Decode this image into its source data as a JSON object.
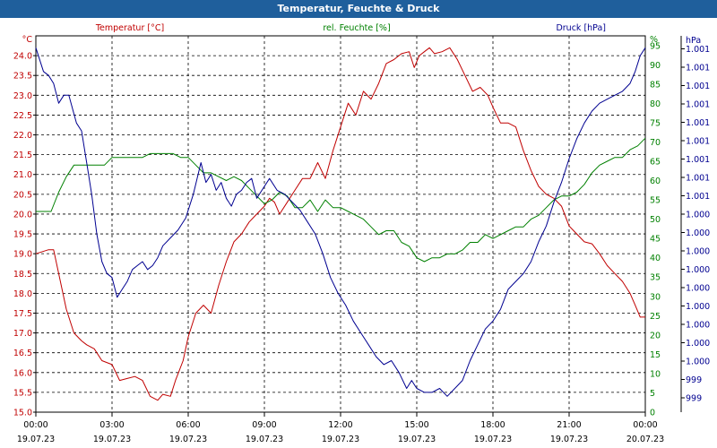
{
  "window": {
    "title": "Temperatur, Feuchte & Druck"
  },
  "chart_data": {
    "type": "line",
    "title": "Temperatur, Feuchte & Druck",
    "grid": true,
    "x_ticks": [
      {
        "time": "00:00",
        "date": "19.07.23"
      },
      {
        "time": "03:00",
        "date": "19.07.23"
      },
      {
        "time": "06:00",
        "date": "19.07.23"
      },
      {
        "time": "09:00",
        "date": "19.07.23"
      },
      {
        "time": "12:00",
        "date": "19.07.23"
      },
      {
        "time": "15:00",
        "date": "19.07.23"
      },
      {
        "time": "18:00",
        "date": "19.07.23"
      },
      {
        "time": "21:00",
        "date": "19.07.23"
      },
      {
        "time": "00:00",
        "date": "20.07.23"
      }
    ],
    "x_range_hours": [
      0,
      24
    ],
    "axes": {
      "temp": {
        "legend": "Temperatur [°C]",
        "unit": "°C",
        "color": "#c00000",
        "ylim": [
          15.0,
          24.5
        ],
        "ticks": [
          "15.0",
          "15.5",
          "16.0",
          "16.5",
          "17.0",
          "17.5",
          "18.0",
          "18.5",
          "19.0",
          "19.5",
          "20.0",
          "20.5",
          "21.0",
          "21.5",
          "22.0",
          "22.5",
          "23.0",
          "23.5",
          "24.0"
        ]
      },
      "hum": {
        "legend": "rel. Feuchte [%]",
        "unit": "%",
        "color": "#008000",
        "ylim": [
          0,
          97.5
        ],
        "ticks": [
          "0",
          "5",
          "10",
          "15",
          "20",
          "25",
          "30",
          "35",
          "40",
          "45",
          "50",
          "55",
          "60",
          "65",
          "70",
          "75",
          "80",
          "85",
          "90",
          "95"
        ]
      },
      "press": {
        "legend": "Druck [hPa]",
        "unit": "hPa",
        "color": "#000090",
        "ticks": [
          "999",
          "999",
          "1.000",
          "1.000",
          "1.000",
          "1.000",
          "1.000",
          "1.000",
          "1.000",
          "1.000",
          "1.000",
          "1.001",
          "1.001",
          "1.001",
          "1.001",
          "1.001",
          "1.001",
          "1.001",
          "1.001",
          "1.001"
        ]
      }
    },
    "series": [
      {
        "name": "Temperatur [°C]",
        "axis": "temp",
        "color": "#c00000",
        "x": [
          0.0,
          0.5,
          0.7,
          1.0,
          1.2,
          1.5,
          1.8,
          2.0,
          2.3,
          2.6,
          3.0,
          3.3,
          3.6,
          3.9,
          4.2,
          4.5,
          4.8,
          5.0,
          5.3,
          5.5,
          5.8,
          6.0,
          6.3,
          6.6,
          6.9,
          7.2,
          7.5,
          7.8,
          8.1,
          8.4,
          8.7,
          9.0,
          9.2,
          9.4,
          9.6,
          9.9,
          10.2,
          10.5,
          10.8,
          11.1,
          11.4,
          11.7,
          12.0,
          12.3,
          12.6,
          12.9,
          13.2,
          13.5,
          13.8,
          14.1,
          14.4,
          14.7,
          14.9,
          15.1,
          15.3,
          15.5,
          15.7,
          16.0,
          16.3,
          16.6,
          16.9,
          17.2,
          17.5,
          17.8,
          18.0,
          18.3,
          18.6,
          18.9,
          19.2,
          19.5,
          19.8,
          20.1,
          20.4,
          20.7,
          21.0,
          21.3,
          21.6,
          21.9,
          22.2,
          22.5,
          22.8,
          23.1,
          23.4,
          23.6,
          23.8,
          24.0
        ],
        "y": [
          19.0,
          19.1,
          19.1,
          18.2,
          17.6,
          17.0,
          16.8,
          16.7,
          16.6,
          16.3,
          16.2,
          15.8,
          15.85,
          15.9,
          15.8,
          15.4,
          15.3,
          15.45,
          15.4,
          15.8,
          16.3,
          16.9,
          17.5,
          17.7,
          17.5,
          18.2,
          18.8,
          19.3,
          19.5,
          19.8,
          20.0,
          20.2,
          20.4,
          20.3,
          20.0,
          20.3,
          20.6,
          20.9,
          20.9,
          21.3,
          20.9,
          21.6,
          22.2,
          22.8,
          22.5,
          23.1,
          22.9,
          23.3,
          23.8,
          23.9,
          24.05,
          24.1,
          23.7,
          24.0,
          24.1,
          24.2,
          24.05,
          24.1,
          24.2,
          23.9,
          23.5,
          23.1,
          23.2,
          23.0,
          22.7,
          22.3,
          22.3,
          22.2,
          21.6,
          21.1,
          20.7,
          20.5,
          20.4,
          20.2,
          19.7,
          19.5,
          19.3,
          19.25,
          19.0,
          18.7,
          18.5,
          18.3,
          18.0,
          17.7,
          17.4,
          17.4
        ]
      },
      {
        "name": "rel. Feuchte [%]",
        "axis": "hum",
        "color": "#008000",
        "x": [
          0.0,
          0.3,
          0.6,
          0.9,
          1.2,
          1.5,
          1.8,
          2.1,
          2.4,
          2.7,
          3.0,
          3.3,
          3.6,
          3.9,
          4.2,
          4.5,
          4.8,
          5.1,
          5.4,
          5.7,
          6.0,
          6.3,
          6.6,
          6.9,
          7.2,
          7.5,
          7.8,
          8.1,
          8.4,
          8.7,
          9.0,
          9.3,
          9.6,
          9.9,
          10.2,
          10.5,
          10.8,
          11.1,
          11.4,
          11.7,
          12.0,
          12.3,
          12.6,
          12.9,
          13.2,
          13.5,
          13.8,
          14.1,
          14.4,
          14.7,
          15.0,
          15.3,
          15.6,
          15.9,
          16.2,
          16.5,
          16.8,
          17.1,
          17.4,
          17.7,
          18.0,
          18.3,
          18.6,
          18.9,
          19.2,
          19.5,
          19.8,
          20.1,
          20.4,
          20.7,
          21.0,
          21.3,
          21.6,
          21.9,
          22.2,
          22.5,
          22.8,
          23.1,
          23.4,
          23.7,
          24.0
        ],
        "y": [
          52,
          52,
          52,
          57,
          61,
          64,
          64,
          64,
          64,
          64,
          66,
          66,
          66,
          66,
          66,
          67,
          67,
          67,
          67,
          66,
          66,
          64,
          62,
          62,
          61,
          60,
          61,
          60,
          58,
          56,
          54,
          55,
          57,
          56,
          53,
          53,
          55,
          52,
          55,
          53,
          53,
          52,
          51,
          50,
          48,
          46,
          47,
          47,
          44,
          43,
          40,
          39,
          40,
          40,
          41,
          41,
          42,
          44,
          44,
          46,
          45,
          46,
          47,
          48,
          48,
          50,
          51,
          53,
          55,
          56,
          56,
          57,
          59,
          62,
          64,
          65,
          66,
          66,
          68,
          69,
          71
        ]
      },
      {
        "name": "Druck [hPa]",
        "axis": "press",
        "color": "#000090",
        "x": [
          0.0,
          0.3,
          0.5,
          0.7,
          0.9,
          1.1,
          1.3,
          1.6,
          1.8,
          2.0,
          2.2,
          2.4,
          2.6,
          2.8,
          3.0,
          3.2,
          3.4,
          3.6,
          3.8,
          4.0,
          4.2,
          4.4,
          4.6,
          4.8,
          5.0,
          5.3,
          5.6,
          5.9,
          6.2,
          6.5,
          6.7,
          6.9,
          7.1,
          7.3,
          7.5,
          7.7,
          7.9,
          8.1,
          8.3,
          8.5,
          8.7,
          8.9,
          9.2,
          9.5,
          9.8,
          10.1,
          10.4,
          10.7,
          11.0,
          11.3,
          11.6,
          11.9,
          12.2,
          12.5,
          12.8,
          13.1,
          13.4,
          13.7,
          14.0,
          14.3,
          14.6,
          14.8,
          15.0,
          15.3,
          15.6,
          15.9,
          16.2,
          16.5,
          16.8,
          17.1,
          17.4,
          17.7,
          18.0,
          18.3,
          18.6,
          18.9,
          19.2,
          19.5,
          19.8,
          20.1,
          20.4,
          20.7,
          21.0,
          21.3,
          21.6,
          21.9,
          22.2,
          22.5,
          22.8,
          23.1,
          23.4,
          23.6,
          23.8,
          24.0
        ],
        "y": [
          24.2,
          23.6,
          23.5,
          23.3,
          22.8,
          23.0,
          23.0,
          22.3,
          22.1,
          21.3,
          20.5,
          19.5,
          18.8,
          18.5,
          18.4,
          17.9,
          18.1,
          18.3,
          18.6,
          18.7,
          18.8,
          18.6,
          18.7,
          18.9,
          19.2,
          19.4,
          19.6,
          19.9,
          20.5,
          21.3,
          20.8,
          21.0,
          20.6,
          20.8,
          20.4,
          20.2,
          20.5,
          20.6,
          20.8,
          20.9,
          20.4,
          20.6,
          20.9,
          20.6,
          20.5,
          20.3,
          20.1,
          19.8,
          19.5,
          19.0,
          18.4,
          18.0,
          17.7,
          17.3,
          17.0,
          16.7,
          16.4,
          16.2,
          16.3,
          16.0,
          15.6,
          15.8,
          15.6,
          15.5,
          15.5,
          15.6,
          15.4,
          15.6,
          15.8,
          16.3,
          16.7,
          17.1,
          17.3,
          17.6,
          18.1,
          18.3,
          18.5,
          18.8,
          19.3,
          19.7,
          20.3,
          20.8,
          21.4,
          21.9,
          22.3,
          22.6,
          22.8,
          22.9,
          23.0,
          23.1,
          23.3,
          23.6,
          24.0,
          24.2
        ]
      }
    ]
  }
}
